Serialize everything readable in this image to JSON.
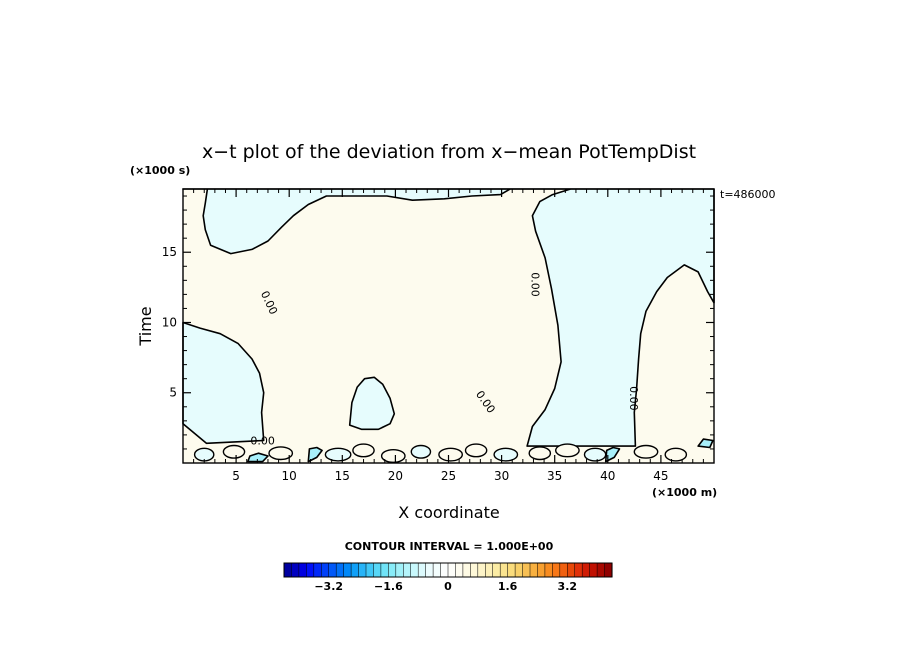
{
  "chart_data": {
    "type": "heatmap",
    "title": "x−t plot of the deviation from x−mean PotTempDist",
    "xlabel": "X coordinate",
    "ylabel": "Time",
    "x_unit": "(×1000 m)",
    "y_unit": "(×1000 s)",
    "time_stamp": "t=486000",
    "xlim": [
      0,
      50
    ],
    "ylim": [
      0,
      19.5
    ],
    "x_ticks": [
      5,
      10,
      15,
      20,
      25,
      30,
      35,
      40,
      45
    ],
    "y_ticks": [
      5,
      10,
      15
    ],
    "contour_interval_text": "CONTOUR INTERVAL = 1.000E+00",
    "contour_labels": [
      {
        "text": "0.00",
        "x": 7.8,
        "y": 11.3,
        "angle": 65
      },
      {
        "text": "0.00",
        "x": 32.8,
        "y": 12.7,
        "angle": 90
      },
      {
        "text": "0.00",
        "x": 28.2,
        "y": 4.2,
        "angle": 55
      },
      {
        "text": "0.00",
        "x": 42.1,
        "y": 4.6,
        "angle": 90
      },
      {
        "text": "0.00",
        "x": 7.5,
        "y": 1.3,
        "angle": 0
      }
    ],
    "regions": [
      {
        "sign": "negative",
        "shade": "light-cyan",
        "polygon": [
          [
            0,
            19.5
          ],
          [
            50,
            19.5
          ],
          [
            50,
            11.4
          ],
          [
            49.4,
            12.2
          ],
          [
            48.5,
            13.6
          ],
          [
            47.2,
            14.1
          ],
          [
            45.6,
            13.2
          ],
          [
            44.6,
            12.2
          ],
          [
            43.6,
            10.8
          ],
          [
            43.1,
            9.2
          ],
          [
            42.9,
            7.4
          ],
          [
            42.7,
            5.2
          ],
          [
            42.5,
            3.6
          ],
          [
            42.6,
            1.2
          ],
          [
            32.4,
            1.2
          ],
          [
            32.9,
            2.6
          ],
          [
            34.1,
            3.8
          ],
          [
            35.0,
            5.3
          ],
          [
            35.6,
            7.2
          ],
          [
            35.3,
            9.8
          ],
          [
            34.7,
            12.4
          ],
          [
            34.1,
            14.6
          ],
          [
            33.2,
            16.5
          ],
          [
            32.9,
            17.6
          ],
          [
            33.6,
            18.6
          ],
          [
            34.8,
            19.1
          ],
          [
            36.5,
            19.5
          ],
          [
            30.8,
            19.5
          ],
          [
            29.9,
            19.1
          ],
          [
            27.2,
            19.0
          ],
          [
            24.6,
            18.8
          ],
          [
            21.6,
            18.7
          ],
          [
            19.2,
            19.0
          ],
          [
            13.5,
            19.0
          ],
          [
            11.8,
            18.4
          ],
          [
            10.4,
            17.6
          ],
          [
            9.3,
            16.8
          ],
          [
            8.0,
            15.8
          ],
          [
            6.5,
            15.2
          ],
          [
            4.5,
            14.9
          ],
          [
            2.6,
            15.5
          ],
          [
            2.1,
            16.6
          ],
          [
            1.9,
            17.6
          ],
          [
            2.1,
            18.5
          ],
          [
            2.3,
            19.5
          ]
        ]
      },
      {
        "sign": "negative",
        "shade": "light-cyan",
        "polygon": [
          [
            0,
            2.8
          ],
          [
            0,
            10.0
          ],
          [
            1.6,
            9.6
          ],
          [
            3.5,
            9.2
          ],
          [
            5.2,
            8.5
          ],
          [
            6.5,
            7.4
          ],
          [
            7.2,
            6.4
          ],
          [
            7.6,
            5.0
          ],
          [
            7.4,
            3.6
          ],
          [
            7.6,
            1.6
          ],
          [
            2.2,
            1.4
          ]
        ]
      },
      {
        "sign": "negative",
        "shade": "light-cyan",
        "polygon": [
          [
            15.7,
            2.7
          ],
          [
            16.8,
            2.4
          ],
          [
            18.4,
            2.4
          ],
          [
            19.5,
            2.8
          ],
          [
            19.9,
            3.5
          ],
          [
            19.5,
            4.6
          ],
          [
            18.8,
            5.6
          ],
          [
            18.0,
            6.1
          ],
          [
            17.1,
            6.0
          ],
          [
            16.4,
            5.4
          ],
          [
            15.9,
            4.3
          ]
        ]
      },
      {
        "sign": "negative",
        "shade": "cyan",
        "polygon": [
          [
            11.8,
            0.1
          ],
          [
            12.6,
            0.4
          ],
          [
            13.1,
            0.9
          ],
          [
            12.6,
            1.1
          ],
          [
            11.9,
            1.0
          ]
        ]
      },
      {
        "sign": "negative",
        "shade": "cyan",
        "polygon": [
          [
            39.8,
            0.1
          ],
          [
            40.6,
            0.4
          ],
          [
            41.1,
            1.0
          ],
          [
            40.5,
            1.1
          ],
          [
            39.9,
            0.9
          ]
        ]
      },
      {
        "sign": "negative",
        "shade": "cyan",
        "polygon": [
          [
            6.1,
            0.1
          ],
          [
            7.5,
            0.1
          ],
          [
            8.0,
            0.5
          ],
          [
            7.1,
            0.7
          ],
          [
            6.3,
            0.5
          ]
        ]
      },
      {
        "sign": "negative",
        "shade": "cyan",
        "polygon": [
          [
            48.5,
            1.2
          ],
          [
            49.6,
            1.1
          ],
          [
            49.9,
            1.6
          ],
          [
            49.0,
            1.7
          ]
        ]
      }
    ],
    "colorbar": {
      "ticks": [
        "−3.2",
        "−1.6",
        "0",
        "1.6",
        "3.2"
      ],
      "tick_values": [
        -3.2,
        -1.6,
        0,
        1.6,
        3.2
      ],
      "range": [
        -4.4,
        4.4
      ],
      "levels": 44,
      "colors": [
        "#0000a0",
        "#0000c0",
        "#0000e0",
        "#0010f8",
        "#0028f8",
        "#0040f8",
        "#0058f8",
        "#0070f8",
        "#0088f8",
        "#10a0f8",
        "#28b4f8",
        "#40c8f8",
        "#58d8f8",
        "#70e4f8",
        "#88ecf8",
        "#a0f0f8",
        "#b4f4fa",
        "#c8f8fc",
        "#dcfafd",
        "#ecfcfe",
        "#f4fefe",
        "#fcfefe",
        "#fefefa",
        "#fefcf0",
        "#fefae4",
        "#fef8d8",
        "#fdf4c8",
        "#fcf0b8",
        "#fbeca4",
        "#fae490",
        "#fadc7c",
        "#f8d068",
        "#f8c054",
        "#f8b040",
        "#f8a030",
        "#f88c20",
        "#f87818",
        "#f06010",
        "#e84808",
        "#e03008",
        "#d01c04",
        "#c01000",
        "#a80800",
        "#900000"
      ]
    }
  }
}
